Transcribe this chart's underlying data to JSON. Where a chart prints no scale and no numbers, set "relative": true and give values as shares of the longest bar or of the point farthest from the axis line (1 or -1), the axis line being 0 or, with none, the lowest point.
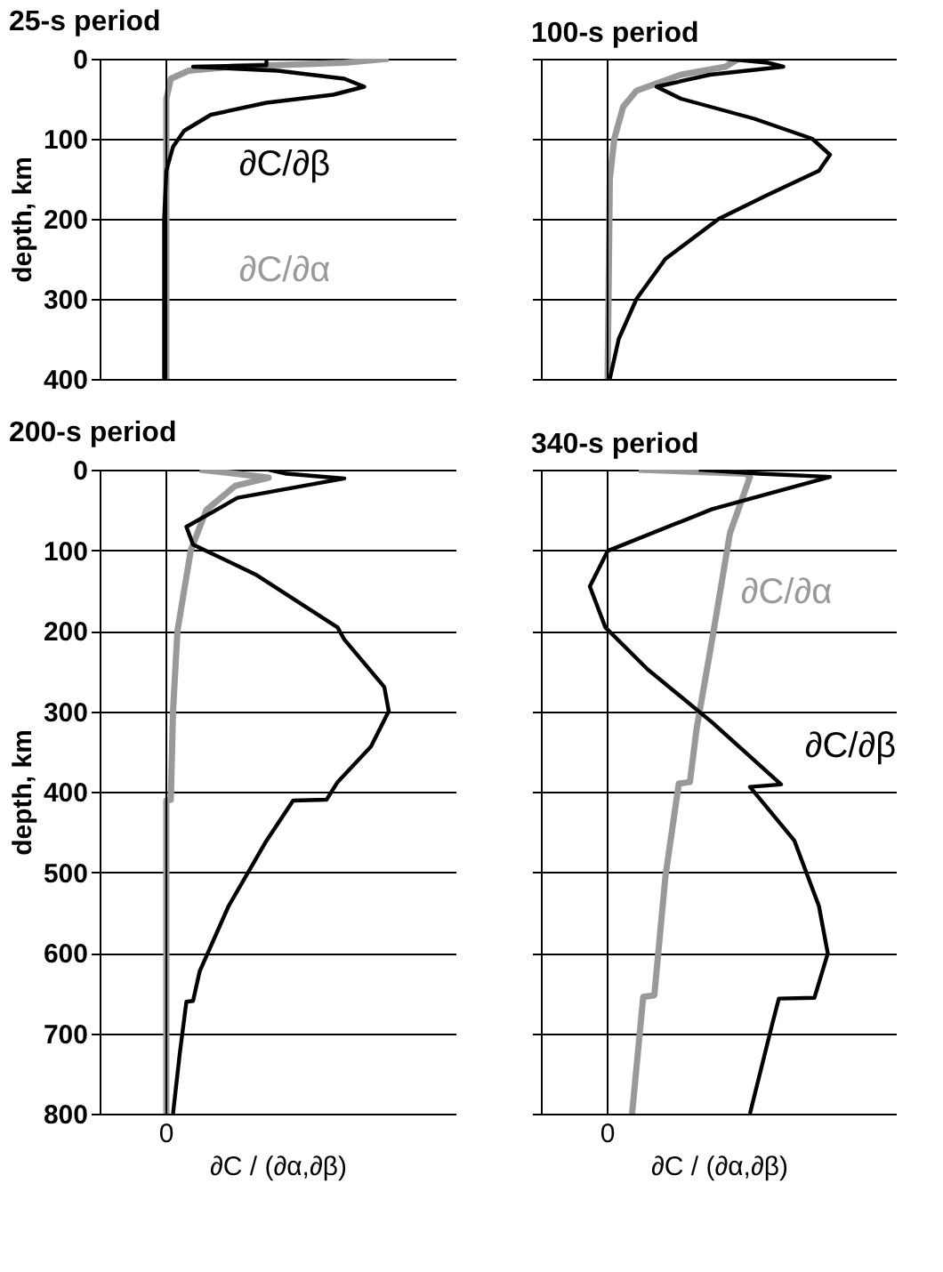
{
  "chart_data": [
    {
      "type": "line",
      "title": "25-s period",
      "ylabel": "depth, km",
      "orientation": "horizontal",
      "relative": true,
      "ylim": [
        400,
        0
      ],
      "yticks": [
        0,
        100,
        200,
        300,
        400
      ],
      "grid": "y",
      "tick_labels": "y",
      "series": [
        {
          "name": "∂C/∂α",
          "color": "#999999",
          "x": [
            0,
            5,
            10,
            15,
            25,
            50,
            400
          ],
          "values": [
            1.0,
            0.8,
            0.3,
            0.1,
            0.02,
            0.0,
            0.0
          ]
        },
        {
          "name": "∂C/∂β",
          "color": "#000000",
          "x": [
            0,
            8,
            10,
            15,
            25,
            35,
            45,
            55,
            70,
            90,
            110,
            140,
            200,
            400
          ],
          "values": [
            0.45,
            0.45,
            0.12,
            0.5,
            0.8,
            0.89,
            0.75,
            0.45,
            0.2,
            0.08,
            0.03,
            0.0,
            -0.01,
            -0.01
          ]
        }
      ]
    },
    {
      "type": "line",
      "title": "100-s period",
      "orientation": "horizontal",
      "relative": true,
      "ylim": [
        400,
        0
      ],
      "yticks": [
        0,
        100,
        200,
        300,
        400
      ],
      "grid": "y",
      "tick_labels": false,
      "series": [
        {
          "color": "#999999",
          "x": [
            0,
            10,
            20,
            40,
            60,
            100,
            150,
            400
          ],
          "values": [
            0.59,
            0.53,
            0.33,
            0.13,
            0.07,
            0.03,
            0.01,
            0.0
          ]
        },
        {
          "color": "#000000",
          "x": [
            0,
            5,
            10,
            20,
            35,
            50,
            75,
            100,
            120,
            140,
            170,
            200,
            250,
            300,
            350,
            400
          ],
          "values": [
            0.53,
            0.72,
            0.79,
            0.46,
            0.22,
            0.33,
            0.66,
            0.92,
            1.0,
            0.95,
            0.72,
            0.5,
            0.26,
            0.13,
            0.05,
            0.01
          ]
        }
      ]
    },
    {
      "type": "line",
      "title": "200-s period",
      "xlabel": "∂C / (∂α,∂β)",
      "ylabel": "depth, km",
      "orientation": "horizontal",
      "relative": true,
      "ylim": [
        800,
        0
      ],
      "yticks": [
        0,
        100,
        200,
        300,
        400,
        500,
        600,
        700,
        800
      ],
      "grid": "y",
      "tick_labels": "y",
      "annotations": [
        "0"
      ],
      "series": [
        {
          "color": "#999999",
          "x": [
            0,
            5,
            10,
            20,
            50,
            100,
            200,
            300,
            410,
            411,
            500,
            800
          ],
          "values": [
            0.15,
            0.31,
            0.46,
            0.31,
            0.18,
            0.11,
            0.05,
            0.03,
            0.02,
            0.0,
            0.0,
            0.0
          ]
        },
        {
          "color": "#000000",
          "x": [
            0,
            5,
            11,
            35,
            71,
            93,
            130,
            196,
            211,
            270,
            300,
            344,
            388,
            410,
            411,
            461,
            542,
            623,
            660,
            661,
            726,
            800
          ],
          "values": [
            0.46,
            0.54,
            0.8,
            0.32,
            0.09,
            0.12,
            0.4,
            0.77,
            0.8,
            0.98,
            1.0,
            0.92,
            0.77,
            0.72,
            0.57,
            0.45,
            0.28,
            0.15,
            0.12,
            0.09,
            0.06,
            0.03
          ]
        }
      ]
    },
    {
      "type": "line",
      "title": "340-s period",
      "xlabel": "∂C / (∂α,∂β)",
      "orientation": "horizontal",
      "relative": true,
      "ylim": [
        800,
        0
      ],
      "yticks": [
        0,
        100,
        200,
        300,
        400,
        500,
        600,
        700,
        800
      ],
      "grid": "y",
      "tick_labels": false,
      "annotations": [
        "0"
      ],
      "series": [
        {
          "name": "∂C/∂α",
          "color": "#999999",
          "x": [
            0,
            5,
            9,
            79,
            211,
            322,
            388,
            390,
            505,
            653,
            655,
            800
          ],
          "values": [
            0.14,
            0.62,
            0.64,
            0.55,
            0.47,
            0.4,
            0.37,
            0.32,
            0.26,
            0.21,
            0.16,
            0.11
          ]
        },
        {
          "name": "∂C/∂β",
          "color": "#000000",
          "x": [
            0,
            5,
            9,
            49,
            101,
            145,
            196,
            248,
            314,
            391,
            394,
            461,
            542,
            601,
            656,
            657,
            689,
            800
          ],
          "values": [
            0.41,
            0.68,
            1.0,
            0.47,
            0.0,
            -0.08,
            -0.01,
            0.18,
            0.47,
            0.78,
            0.64,
            0.84,
            0.95,
            0.99,
            0.93,
            0.77,
            0.74,
            0.64
          ]
        }
      ]
    }
  ]
}
